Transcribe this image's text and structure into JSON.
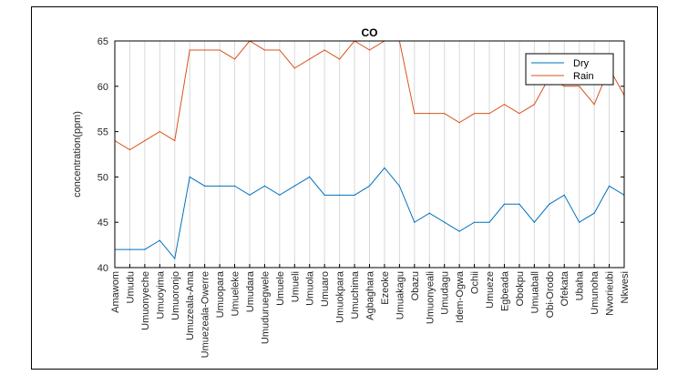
{
  "chart_data": {
    "type": "line",
    "title": "CO",
    "xlabel": "",
    "ylabel": "concentration(ppm)",
    "ylim": [
      40,
      65
    ],
    "yticks": [
      40,
      45,
      50,
      55,
      60,
      65
    ],
    "grid": "vertical",
    "legend_position": "top-right",
    "categories": [
      "Amawom",
      "Umudu",
      "Umuonyeche",
      "Umuoyima",
      "Umuoronjo",
      "Umuzeala-Ama",
      "Umuezeala-Owerre",
      "Umuopara",
      "Umueleke",
      "Umudara",
      "Umuduruegwele",
      "Umuele",
      "Umueli",
      "Umuola",
      "Umuaro",
      "Umuokpara",
      "Umuchima",
      "Agbaghara",
      "Ezeoke",
      "Umuakagu",
      "Obazu",
      "Umuonyeali",
      "Umudagu",
      "Idem-Ogwa",
      "Ochii",
      "Umueze",
      "Egbeada",
      "Obokpu",
      "Umuaball",
      "Obi-Orodo",
      "Ofekata",
      "Ubaha",
      "Umunoha",
      "Nworieubi",
      "Nkwesi"
    ],
    "series": [
      {
        "name": "Dry",
        "color": "#0072BD",
        "values": [
          42,
          42,
          42,
          43,
          41,
          50,
          49,
          49,
          49,
          48,
          49,
          48,
          49,
          50,
          48,
          48,
          48,
          49,
          51,
          49,
          45,
          46,
          45,
          44,
          45,
          45,
          47,
          47,
          45,
          47,
          48,
          45,
          46,
          49,
          48
        ]
      },
      {
        "name": "Rain",
        "color": "#D95319",
        "values": [
          54,
          53,
          54,
          55,
          54,
          64,
          64,
          64,
          63,
          65,
          64,
          64,
          62,
          63,
          64,
          63,
          65,
          64,
          65,
          65,
          57,
          57,
          57,
          56,
          57,
          57,
          58,
          57,
          58,
          61,
          60,
          60,
          58,
          62,
          59
        ]
      }
    ]
  }
}
